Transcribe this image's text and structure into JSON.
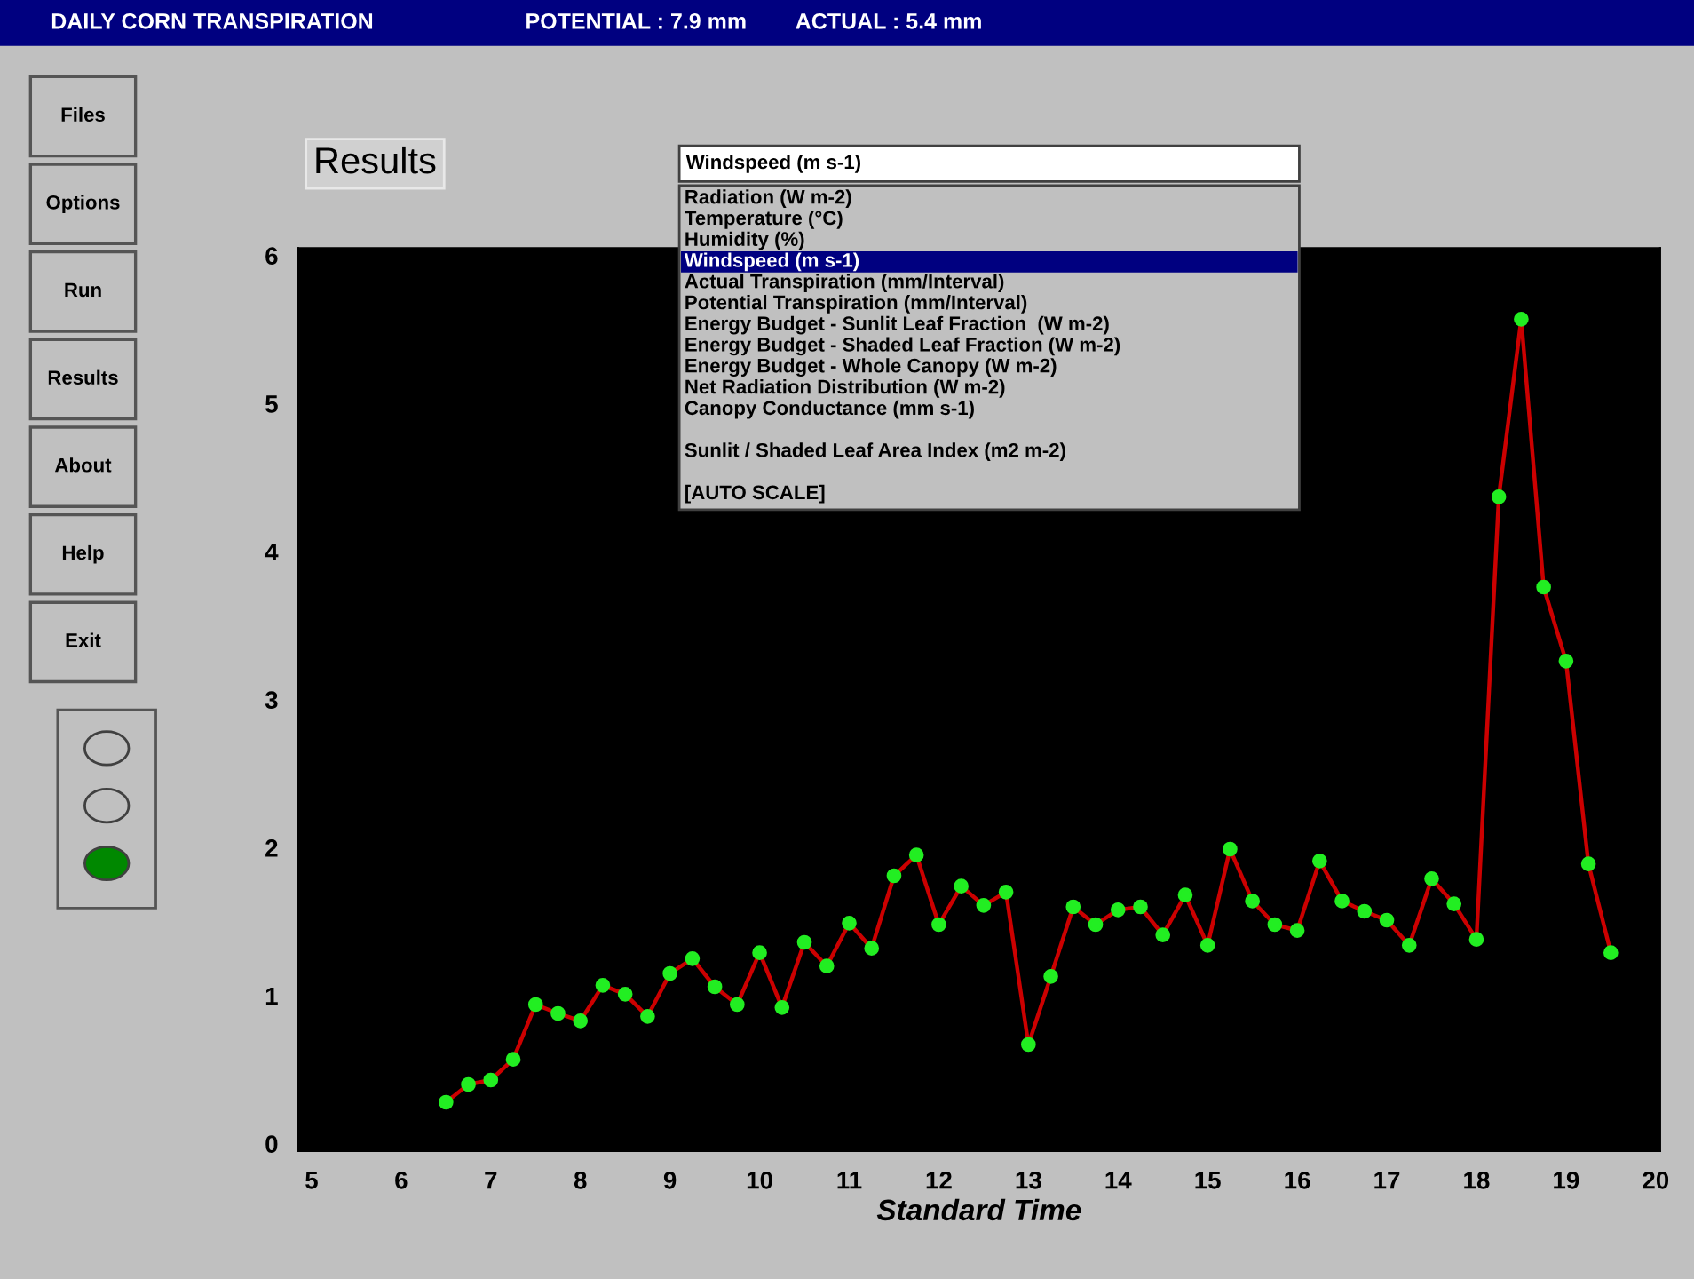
{
  "chart_data": {
    "type": "line",
    "title": "DAILY CORN TRANSPIRATION",
    "subtitle": "POTENTIAL : 7.9 mm        ACTUAL : 5.4 mm",
    "xlabel": "Standard Time",
    "annotations": [
      "Results",
      "Windspeed (m s-1)",
      "Radiation (W m-2)",
      "Temperature (°C)",
      "Humidity (%)",
      "Windspeed (m s-1)",
      "Actual Transpiration (mm/Interval)",
      "Potential Transpiration (mm/Interval)",
      "Energy Budget - Sunlit Leaf Fraction  (W m-2)",
      "Energy Budget - Shaded Leaf Fraction (W m-2)",
      "Energy Budget - Whole Canopy (W m-2)",
      "Net Radiation Distribution (W m-2)",
      "Canopy Conductance (mm s-1)",
      "Sunlit / Shaded Leaf Area Index (m2 m-2)",
      "[AUTO SCALE]",
      "Files",
      "Options",
      "Run",
      "Results",
      "About",
      "Help",
      "Exit"
    ],
    "x": [
      6.5,
      6.75,
      7.0,
      7.25,
      7.5,
      7.75,
      8.0,
      8.25,
      8.5,
      8.75,
      9.0,
      9.25,
      9.5,
      9.75,
      10.0,
      10.25,
      10.5,
      10.75,
      11.0,
      11.25,
      11.5,
      11.75,
      12.0,
      12.25,
      12.5,
      12.75,
      13.0,
      13.25,
      13.5,
      13.75,
      14.0,
      14.25,
      14.5,
      14.75,
      15.0,
      15.25,
      15.5,
      15.75,
      16.0,
      16.25,
      16.5,
      16.75,
      17.0,
      17.25,
      17.5,
      17.75,
      18.0,
      18.25,
      18.5,
      18.75,
      19.0,
      19.25,
      19.5
    ],
    "series": [
      {
        "color": "#cc0000",
        "values": [
          0.28,
          0.4,
          0.43,
          0.57,
          0.94,
          0.88,
          0.83,
          1.07,
          1.01,
          0.86,
          1.15,
          1.25,
          1.06,
          0.94,
          1.29,
          0.92,
          1.36,
          1.2,
          1.49,
          1.32,
          1.81,
          1.95,
          1.48,
          1.74,
          1.61,
          1.7,
          0.67,
          1.13,
          1.6,
          1.48,
          1.58,
          1.6,
          1.41,
          1.68,
          1.34,
          1.99,
          1.64,
          1.48,
          1.44,
          1.91,
          1.64,
          1.57,
          1.51,
          1.34,
          1.79,
          1.62,
          1.38,
          4.37,
          5.57,
          3.76,
          3.26,
          1.89,
          1.29
        ]
      }
    ],
    "xlim": [
      4.85,
      20.05
    ],
    "ylim": [
      -0.05,
      6.05
    ],
    "xticks": [
      5,
      6,
      7,
      8,
      9,
      10,
      11,
      12,
      13,
      14,
      15,
      16,
      17,
      18,
      19,
      20
    ],
    "yticks": [
      0,
      1,
      2,
      3,
      4,
      5,
      6
    ],
    "marker": "circle",
    "line_style": "solid",
    "grid": false,
    "legend": false
  }
}
